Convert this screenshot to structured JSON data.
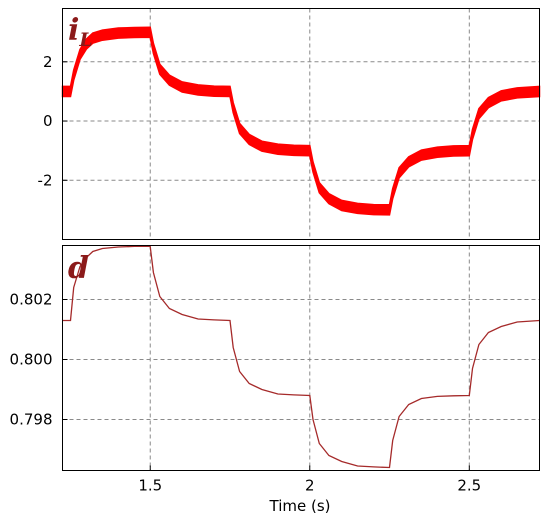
{
  "chart_data": [
    {
      "type": "line",
      "panel_label": "i",
      "panel_label_sub": "L",
      "xlim": [
        1.225,
        2.72
      ],
      "ylim": [
        -4.0,
        3.8
      ],
      "xticks": [
        1.5,
        2,
        2.5
      ],
      "yticks": [
        2,
        0,
        -2
      ],
      "ytick_labels": [
        "2",
        "0",
        "-2"
      ],
      "grid": true,
      "series_color": "#ff0000",
      "ripple_band": 0.34,
      "series": [
        {
          "x": [
            1.225,
            1.25,
            1.26,
            1.28,
            1.3,
            1.32,
            1.35,
            1.4,
            1.45,
            1.5,
            1.51,
            1.53,
            1.56,
            1.6,
            1.65,
            1.7,
            1.75,
            1.76,
            1.78,
            1.81,
            1.85,
            1.9,
            1.95,
            2.0,
            2.01,
            2.03,
            2.06,
            2.1,
            2.15,
            2.2,
            2.25,
            2.26,
            2.28,
            2.31,
            2.35,
            2.4,
            2.45,
            2.5,
            2.51,
            2.53,
            2.56,
            2.6,
            2.65,
            2.72
          ],
          "values": [
            1.0,
            1.0,
            1.55,
            2.25,
            2.6,
            2.8,
            2.9,
            2.97,
            2.99,
            3.0,
            2.45,
            1.75,
            1.38,
            1.15,
            1.05,
            1.01,
            1.0,
            0.45,
            -0.25,
            -0.62,
            -0.85,
            -0.95,
            -0.99,
            -1.0,
            -1.55,
            -2.25,
            -2.62,
            -2.85,
            -2.95,
            -2.99,
            -3.0,
            -2.45,
            -1.75,
            -1.38,
            -1.15,
            -1.05,
            -1.01,
            -1.0,
            -0.45,
            0.25,
            0.62,
            0.85,
            0.95,
            1.0
          ]
        }
      ]
    },
    {
      "type": "line",
      "panel_label": "d",
      "xlim": [
        1.225,
        2.72
      ],
      "ylim": [
        0.7963,
        0.8038
      ],
      "xticks": [
        1.5,
        2,
        2.5
      ],
      "yticks": [
        0.802,
        0.8,
        0.798
      ],
      "ytick_labels": [
        "0.802",
        "0.800",
        "0.798"
      ],
      "xtick_labels": [
        "1.5",
        "2",
        "2.5"
      ],
      "xlabel": "Time (s)",
      "grid": true,
      "series_color": "#a52a2a",
      "series": [
        {
          "x": [
            1.225,
            1.25,
            1.26,
            1.28,
            1.3,
            1.32,
            1.35,
            1.4,
            1.45,
            1.5,
            1.51,
            1.53,
            1.56,
            1.6,
            1.65,
            1.7,
            1.75,
            1.76,
            1.78,
            1.81,
            1.85,
            1.9,
            1.95,
            2.0,
            2.01,
            2.03,
            2.06,
            2.1,
            2.15,
            2.2,
            2.25,
            2.26,
            2.28,
            2.31,
            2.35,
            2.4,
            2.45,
            2.5,
            2.51,
            2.53,
            2.56,
            2.6,
            2.65,
            2.72
          ],
          "values": [
            0.8013,
            0.8013,
            0.8024,
            0.8031,
            0.8034,
            0.8036,
            0.8037,
            0.80375,
            0.80377,
            0.80377,
            0.8029,
            0.8021,
            0.8017,
            0.8015,
            0.80135,
            0.80132,
            0.8013,
            0.8004,
            0.7996,
            0.7992,
            0.799,
            0.79885,
            0.79882,
            0.7988,
            0.798,
            0.7972,
            0.7968,
            0.7966,
            0.79645,
            0.79642,
            0.7964,
            0.7973,
            0.7981,
            0.7985,
            0.7987,
            0.79877,
            0.79879,
            0.7988,
            0.7997,
            0.8005,
            0.8009,
            0.8011,
            0.80125,
            0.8013
          ]
        }
      ]
    }
  ]
}
